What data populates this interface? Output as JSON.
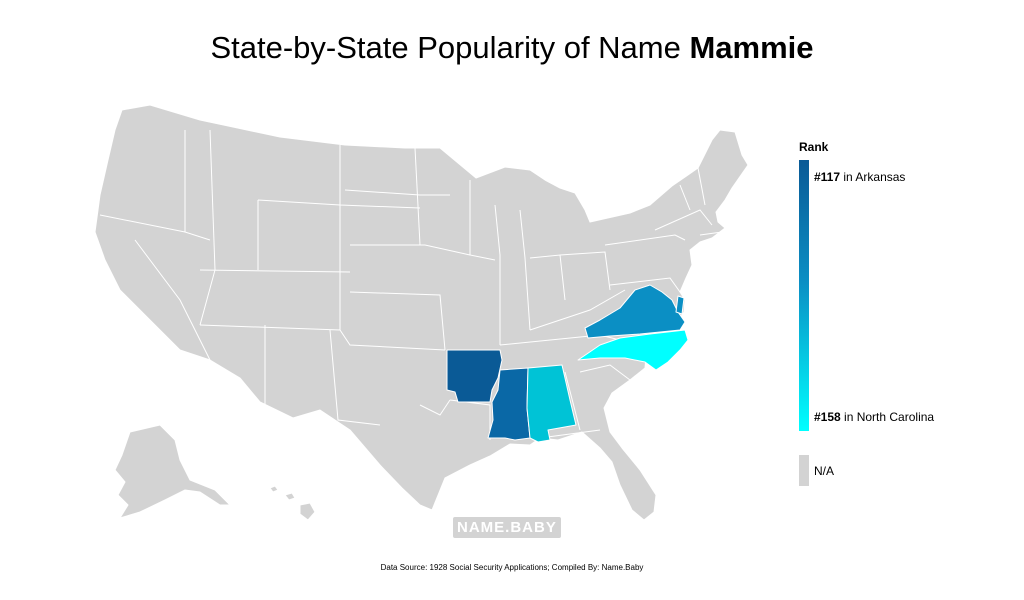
{
  "title": {
    "prefix": "State-by-State Popularity of Name ",
    "name": "Mammie"
  },
  "legend": {
    "title": "Rank",
    "top_rank": "#117",
    "top_state": " in Arkansas",
    "bottom_rank": "#158",
    "bottom_state": " in North Carolina",
    "na_label": "N/A",
    "colors": {
      "high": "#0a5a96",
      "low": "#00ffff",
      "na": "#d3d3d3"
    }
  },
  "watermark": "NAME.BABY",
  "source": "Data Source: 1928 Social Security Applications; Compiled By: Name.Baby",
  "highlighted_states": [
    {
      "state": "Arkansas",
      "rank": 117,
      "color": "#0a5a96"
    },
    {
      "state": "Mississippi",
      "color": "#0a68a6"
    },
    {
      "state": "Virginia",
      "color": "#0b8fc4"
    },
    {
      "state": "Alabama",
      "color": "#00c3d6"
    },
    {
      "state": "North Carolina",
      "rank": 158,
      "color": "#00ffff"
    }
  ]
}
